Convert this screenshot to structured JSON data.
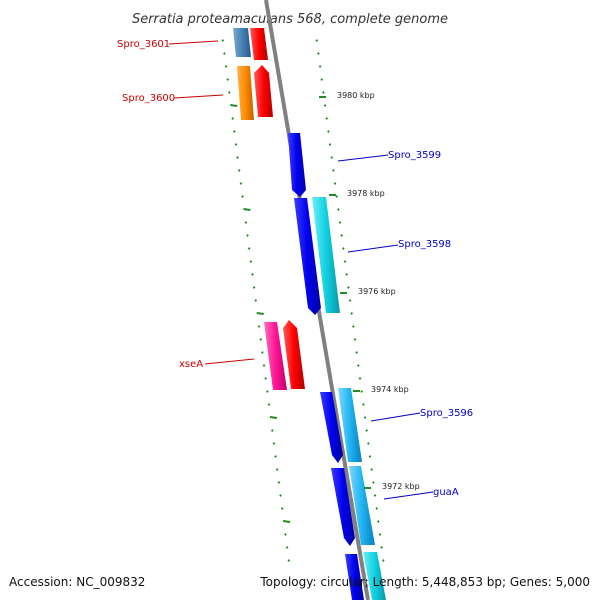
{
  "title": "Serratia proteamaculans 568, complete genome",
  "footer": {
    "accession": "Accession: NC_009832",
    "topology": "Topology: circular; Length: 5,448,853 bp; Genes: 5,000"
  },
  "scale": {
    "unit": "kbp",
    "major_ticks": [
      {
        "label": "3980 kbp"
      },
      {
        "label": "3978 kbp"
      },
      {
        "label": "3976 kbp"
      },
      {
        "label": "3974 kbp"
      },
      {
        "label": "3972 kbp"
      }
    ]
  },
  "genes": [
    {
      "name": "Spro_3601",
      "label": "Spro_3601",
      "side": "left",
      "label_color": "#cc0000"
    },
    {
      "name": "Spro_3600",
      "label": "Spro_3600",
      "side": "left",
      "label_color": "#cc0000"
    },
    {
      "name": "Spro_3599",
      "label": "Spro_3599",
      "side": "right",
      "label_color": "#0000cc"
    },
    {
      "name": "Spro_3598",
      "label": "Spro_3598",
      "side": "right",
      "label_color": "#0000cc"
    },
    {
      "name": "xseA",
      "label": "xseA",
      "side": "left",
      "label_color": "#cc0000"
    },
    {
      "name": "Spro_3596",
      "label": "Spro_3596",
      "side": "right",
      "label_color": "#0000cc"
    },
    {
      "name": "guaA",
      "label": "guaA",
      "side": "right",
      "label_color": "#0000cc"
    }
  ],
  "colors": {
    "backbone": "#808080",
    "ticks": "#228b22",
    "forward_strand": "#e00000",
    "reverse_strand": "#0000e0",
    "cyan": "#00c8d8",
    "orange": "#ff8c00",
    "pink": "#ff1493",
    "steel_blue": "#4682b4"
  }
}
